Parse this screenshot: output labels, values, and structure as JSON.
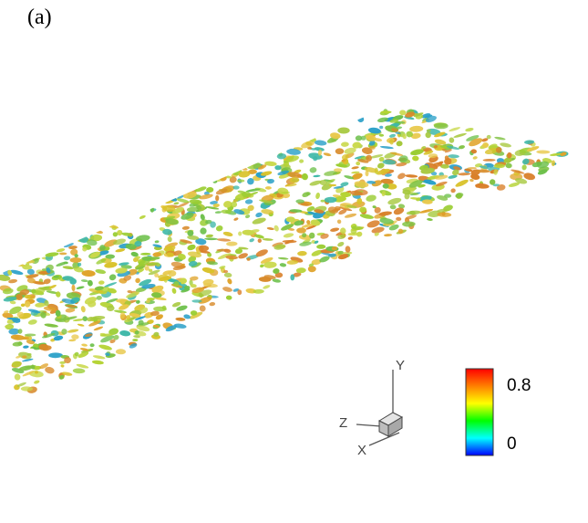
{
  "figure": {
    "panel_label": "(a)"
  },
  "axes_triad": {
    "y_label": "Y",
    "z_label": "Z",
    "x_label": "X"
  },
  "colorbar": {
    "max_label": "0.8",
    "min_label": "0",
    "colors": [
      "#ff0000",
      "#ff8000",
      "#ffff00",
      "#00ff00",
      "#00ffff",
      "#0000ff"
    ]
  }
}
